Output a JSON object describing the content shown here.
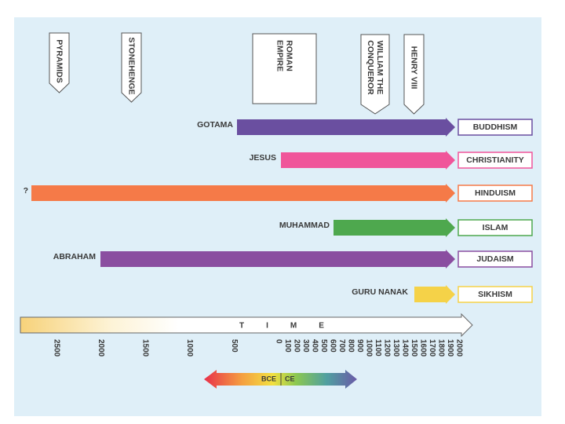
{
  "markers": [
    {
      "lines": [
        "PYRAMIDS"
      ]
    },
    {
      "lines": [
        "STONEHENGE"
      ]
    },
    {
      "lines": [
        "ROMAN",
        "EMPIRE"
      ]
    },
    {
      "lines": [
        "WILLIAM THE",
        "CONQUEROR"
      ]
    },
    {
      "lines": [
        "HENRY VIII"
      ]
    }
  ],
  "religions": [
    {
      "founder": "GOTAMA",
      "name": "BUDDHISM"
    },
    {
      "founder": "JESUS",
      "name": "CHRISTIANITY"
    },
    {
      "founder": "?",
      "name": "HINDUISM"
    },
    {
      "founder": "MUHAMMAD",
      "name": "ISLAM"
    },
    {
      "founder": "ABRAHAM",
      "name": "JUDAISM"
    },
    {
      "founder": "GURU NANAK",
      "name": "SIKHISM"
    }
  ],
  "axis": {
    "title": "TIME",
    "bce": [
      "2500",
      "2000",
      "1500",
      "1000",
      "500"
    ],
    "ce": [
      "0",
      "100",
      "200",
      "300",
      "400",
      "500",
      "600",
      "700",
      "800",
      "900",
      "1000",
      "1100",
      "1200",
      "1300",
      "1400",
      "1500",
      "1600",
      "1700",
      "1800",
      "1900",
      "2000"
    ]
  },
  "legend": {
    "bce": "BCE",
    "ce": "CE"
  }
}
